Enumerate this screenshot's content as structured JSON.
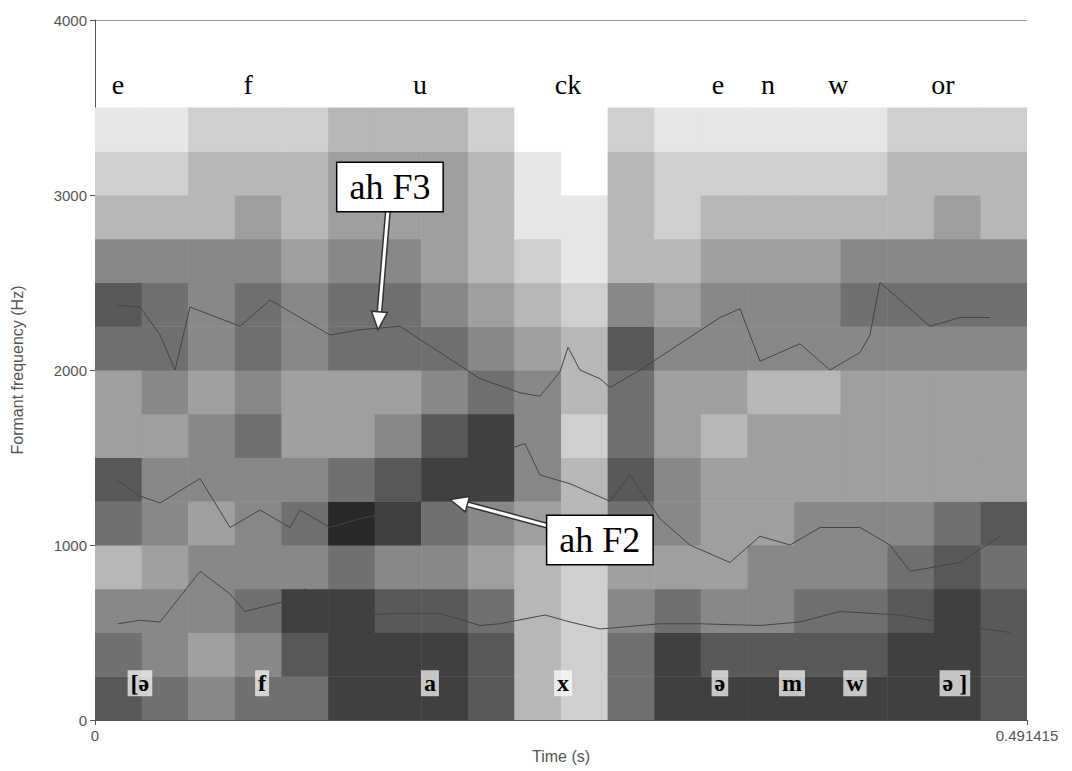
{
  "chart_data": {
    "type": "line",
    "x_label": "Time (s)",
    "y_label": "Formant frequency (Hz)",
    "xlim": [
      0,
      0.491415
    ],
    "xticks": [
      0,
      0.491415
    ],
    "ylim": [
      0,
      4000
    ],
    "yticks": [
      0,
      1000,
      2000,
      3000,
      4000
    ],
    "grid": true,
    "series": [
      {
        "color": "#444444",
        "x": [
          0.0121,
          0.0237,
          0.0343,
          0.0554,
          0.0712,
          0.0791,
          0.1081,
          0.1107,
          0.1239,
          0.1397,
          0.1608,
          0.1819,
          0.203,
          0.2135,
          0.2373,
          0.2505,
          0.2663,
          0.2979,
          0.319,
          0.3506,
          0.3717,
          0.3928,
          0.4245,
          0.4561,
          0.4825
        ],
        "values": [
          550,
          570,
          560,
          850,
          720,
          620,
          700,
          750,
          660,
          600,
          610,
          610,
          540,
          550,
          600,
          560,
          520,
          550,
          550,
          540,
          560,
          620,
          600,
          540,
          500
        ]
      },
      {
        "color": "#444444",
        "x": [
          0.0121,
          0.0237,
          0.0343,
          0.0554,
          0.0712,
          0.087,
          0.1028,
          0.1081,
          0.1239,
          0.1397,
          0.1608,
          0.1819,
          0.1977,
          0.2188,
          0.2267,
          0.2346,
          0.2505,
          0.2715,
          0.2821,
          0.2979,
          0.3137,
          0.3348,
          0.3506,
          0.3665,
          0.3823,
          0.4034,
          0.4192,
          0.4297,
          0.4561,
          0.4772
        ],
        "values": [
          1370,
          1280,
          1240,
          1380,
          1100,
          1200,
          1100,
          1200,
          1100,
          1150,
          1200,
          1300,
          1450,
          1550,
          1580,
          1400,
          1350,
          1250,
          1400,
          1150,
          1000,
          900,
          1050,
          1000,
          1100,
          1100,
          1000,
          850,
          900,
          1050
        ]
      },
      {
        "color": "#444444",
        "x": [
          0.0121,
          0.0237,
          0.0343,
          0.0422,
          0.0501,
          0.0765,
          0.0923,
          0.1081,
          0.1239,
          0.1397,
          0.1608,
          0.1819,
          0.203,
          0.2241,
          0.2346,
          0.2452,
          0.2494,
          0.2557,
          0.2663,
          0.2715,
          0.2874,
          0.3084,
          0.3296,
          0.3401,
          0.3506,
          0.3717,
          0.3875,
          0.4034,
          0.4086,
          0.4139,
          0.4245,
          0.4403,
          0.4561,
          0.4719
        ],
        "values": [
          2370,
          2360,
          2200,
          2000,
          2360,
          2250,
          2400,
          2300,
          2200,
          2230,
          2250,
          2100,
          1950,
          1870,
          1850,
          1990,
          2130,
          2000,
          1950,
          1900,
          2000,
          2150,
          2300,
          2350,
          2050,
          2150,
          2000,
          2100,
          2200,
          2500,
          2400,
          2250,
          2300,
          2300
        ]
      }
    ],
    "spectrogram": {
      "t_edges": [
        0,
        0.0246,
        0.0491,
        0.0737,
        0.0983,
        0.1229,
        0.1474,
        0.172,
        0.1966,
        0.2211,
        0.2457,
        0.2703,
        0.2949,
        0.3194,
        0.344,
        0.3686,
        0.3931,
        0.4177,
        0.4423,
        0.4669,
        0.491415
      ],
      "f_edges": [
        0,
        250,
        500,
        750,
        1000,
        1250,
        1500,
        1750,
        2000,
        2250,
        2500,
        2750,
        3000,
        3250,
        3500
      ],
      "intensity_range": [
        0,
        9
      ],
      "cells": [
        [
          7,
          6,
          5,
          3,
          6,
          7,
          4,
          4,
          6,
          7,
          5,
          3,
          2,
          1
        ],
        [
          6,
          5,
          5,
          4,
          5,
          5,
          4,
          5,
          6,
          6,
          5,
          3,
          2,
          1
        ],
        [
          5,
          4,
          5,
          5,
          4,
          5,
          5,
          4,
          5,
          5,
          5,
          3,
          3,
          2
        ],
        [
          6,
          5,
          6,
          5,
          5,
          5,
          6,
          5,
          6,
          6,
          5,
          4,
          3,
          2
        ],
        [
          6,
          7,
          8,
          5,
          6,
          5,
          4,
          4,
          5,
          5,
          4,
          3,
          3,
          2
        ],
        [
          8,
          8,
          8,
          6,
          9,
          6,
          4,
          4,
          6,
          6,
          5,
          4,
          4,
          3
        ],
        [
          8,
          8,
          7,
          5,
          8,
          7,
          5,
          4,
          6,
          6,
          5,
          4,
          4,
          3
        ],
        [
          8,
          8,
          7,
          5,
          6,
          8,
          7,
          5,
          6,
          5,
          4,
          4,
          4,
          3
        ],
        [
          7,
          7,
          6,
          4,
          5,
          8,
          8,
          6,
          5,
          4,
          3,
          3,
          3,
          2
        ],
        [
          3,
          3,
          3,
          3,
          4,
          5,
          5,
          5,
          4,
          3,
          2,
          1,
          1,
          0
        ],
        [
          2,
          2,
          2,
          2,
          3,
          3,
          2,
          3,
          3,
          2,
          1,
          1,
          0,
          0
        ],
        [
          6,
          6,
          5,
          4,
          6,
          7,
          6,
          6,
          7,
          5,
          3,
          3,
          3,
          2
        ],
        [
          8,
          8,
          6,
          4,
          5,
          5,
          4,
          4,
          5,
          4,
          3,
          2,
          2,
          1
        ],
        [
          8,
          7,
          5,
          4,
          4,
          4,
          3,
          4,
          5,
          5,
          4,
          3,
          2,
          1
        ],
        [
          8,
          7,
          5,
          5,
          4,
          4,
          4,
          3,
          5,
          5,
          4,
          3,
          2,
          1
        ],
        [
          8,
          7,
          6,
          5,
          5,
          4,
          4,
          3,
          5,
          5,
          4,
          3,
          2,
          1
        ],
        [
          8,
          7,
          6,
          5,
          5,
          4,
          4,
          4,
          5,
          6,
          5,
          3,
          2,
          1
        ],
        [
          8,
          8,
          7,
          6,
          5,
          4,
          4,
          4,
          5,
          6,
          5,
          3,
          3,
          2
        ],
        [
          8,
          8,
          8,
          7,
          6,
          4,
          4,
          4,
          5,
          6,
          5,
          4,
          3,
          2
        ],
        [
          7,
          7,
          7,
          6,
          7,
          4,
          4,
          4,
          5,
          6,
          5,
          3,
          3,
          2
        ]
      ]
    },
    "orthography": {
      "labels": [
        "e",
        "f",
        "u",
        "ck",
        "e",
        "n",
        "w",
        "or"
      ],
      "x": [
        0.0121,
        0.0807,
        0.1714,
        0.2494,
        0.3285,
        0.3549,
        0.3918,
        0.4471
      ],
      "y": 3630
    },
    "transcription": {
      "labels": [
        "[ə",
        "f",
        "a",
        "x",
        "ə",
        "m",
        "w",
        "ə ]"
      ],
      "x": [
        0.0237,
        0.0881,
        0.1766,
        0.2468,
        0.3295,
        0.3675,
        0.4007,
        0.4534
      ],
      "y": 210
    },
    "annotations": [
      {
        "text": "ah F3",
        "x": 0.1555,
        "y": 3046,
        "arrow_to": [
          0.1492,
          2230
        ]
      },
      {
        "text": "ah F2",
        "x": 0.2662,
        "y": 1029,
        "arrow_to": [
          0.1872,
          1260
        ]
      }
    ]
  }
}
